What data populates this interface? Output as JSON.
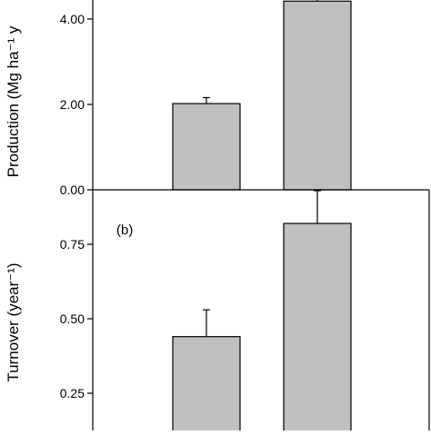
{
  "chart_data": [
    {
      "type": "bar",
      "panel_label": "",
      "ylabel": "Production (Mg ha⁻¹ y",
      "ylim": [
        0,
        4.5
      ],
      "yticks": [
        "0.00",
        "2.00",
        "4.00"
      ],
      "ytick_values": [
        0,
        2,
        4
      ],
      "grid": false,
      "bar_color": "#c0c0c0",
      "series": [
        {
          "values": [
            2.02,
            4.42
          ],
          "errors": [
            0.14,
            0.14
          ]
        }
      ]
    },
    {
      "type": "bar",
      "panel_label": "(b)",
      "ylabel": "Turnover (year⁻¹)",
      "ylim": [
        0,
        1.0
      ],
      "yticks": [
        "0.25",
        "0.50",
        "0.75"
      ],
      "ytick_values": [
        0.25,
        0.5,
        0.75
      ],
      "grid": false,
      "bar_color": "#c0c0c0",
      "series": [
        {
          "values": [
            0.44,
            0.82
          ],
          "errors": [
            0.09,
            0.11
          ]
        }
      ]
    }
  ]
}
